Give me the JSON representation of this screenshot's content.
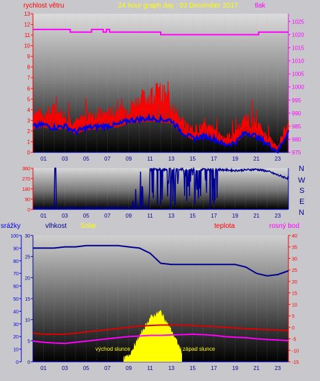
{
  "header": {
    "left_label": "rychlost větru",
    "center_title": "24 hour graph day : 03 December 2017",
    "right_label": "tlak"
  },
  "direction_labels": [
    "N",
    "W",
    "S",
    "E",
    "N"
  ],
  "bottom_labels": {
    "rain": "srážky",
    "humidity": "vlhkost",
    "solar": "Solar",
    "temperature": "teplota",
    "dew": "rosný bod",
    "sunrise": "východ slunce",
    "sunset": "západ slunce"
  },
  "colors": {
    "wind_gust": "#ff0000",
    "wind_avg": "#0000dd",
    "pressure": "#ff00ff",
    "direction": "#000090",
    "humidity": "#000090",
    "temperature": "#dd0000",
    "dew": "#ff00ff",
    "solar": "#ffff00",
    "axis_left": "#ff0000",
    "axis_right": "#ff00ff",
    "axis_bottom": "#0000dd"
  },
  "chart_data": [
    {
      "type": "line",
      "x_ticks": [
        "01",
        "03",
        "05",
        "07",
        "09",
        "11",
        "13",
        "15",
        "17",
        "19",
        "21",
        "23"
      ],
      "y_left": {
        "range": [
          0,
          13
        ],
        "ticks": [
          "0",
          "1",
          "2",
          "3",
          "4",
          "5",
          "6",
          "7",
          "8",
          "9",
          "10",
          "11",
          "12",
          "13"
        ]
      },
      "y_right": {
        "range": [
          975,
          1028
        ],
        "ticks": [
          "975",
          "980",
          "985",
          "990",
          "995",
          "1000",
          "1005",
          "1010",
          "1015",
          "1020",
          "1025"
        ]
      },
      "x": [
        0,
        1,
        2,
        3,
        4,
        5,
        6,
        7,
        8,
        9,
        10,
        11,
        12,
        13,
        14,
        15,
        16,
        17,
        18,
        19,
        20,
        21,
        22,
        23,
        24
      ],
      "series": [
        {
          "role": "gust",
          "values": [
            3.8,
            3.6,
            3.9,
            3.5,
            2.8,
            3.4,
            3.6,
            3.7,
            3.8,
            4.2,
            4.9,
            5.3,
            5.6,
            4.6,
            2.8,
            2.2,
            2.4,
            2.2,
            1.4,
            1.8,
            3.1,
            2.7,
            1.5,
            0.4,
            3.0
          ]
        },
        {
          "role": "avg",
          "values": [
            2.4,
            2.6,
            2.3,
            2.5,
            1.9,
            2.3,
            2.4,
            2.5,
            2.6,
            3.0,
            3.1,
            3.2,
            3.1,
            3.0,
            1.9,
            1.3,
            1.5,
            1.3,
            0.7,
            0.9,
            1.9,
            1.5,
            0.8,
            0.1,
            2.0
          ]
        },
        {
          "role": "pressure",
          "values": [
            1022,
            1022,
            1022,
            1021,
            1021,
            1021,
            1021,
            1021,
            1021,
            1021,
            1021,
            1021,
            1020,
            1020,
            1020,
            1020,
            1020,
            1020,
            1020,
            1020,
            1020,
            1020,
            1021,
            1021,
            1021
          ]
        }
      ]
    },
    {
      "type": "line",
      "x_ticks": [
        "01",
        "03",
        "05",
        "07",
        "09",
        "11",
        "13",
        "15",
        "17",
        "19",
        "21",
        "23"
      ],
      "y": {
        "range": [
          0,
          360
        ],
        "ticks": [
          "0",
          "90",
          "180",
          "270",
          "360"
        ]
      },
      "x": [
        0,
        1,
        2,
        3,
        4,
        5,
        6,
        7,
        8,
        9,
        10,
        11,
        12,
        13,
        14,
        15,
        16,
        17,
        18,
        19,
        20,
        21,
        22,
        23,
        24
      ],
      "series": [
        {
          "role": "direction",
          "values": [
            15,
            15,
            15,
            15,
            15,
            15,
            15,
            15,
            15,
            15,
            15,
            360,
            360,
            360,
            355,
            355,
            350,
            350,
            345,
            340,
            345,
            350,
            335,
            300,
            270
          ]
        }
      ]
    },
    {
      "type": "line",
      "x_ticks": [
        "01",
        "03",
        "05",
        "07",
        "09",
        "11",
        "13",
        "15",
        "17",
        "19",
        "21",
        "23"
      ],
      "y_left_rain": {
        "range": [
          0,
          100
        ],
        "ticks": [
          "0",
          "10",
          "20",
          "30",
          "40",
          "50",
          "60",
          "70",
          "80",
          "90",
          "100"
        ]
      },
      "y_left_humidity": {
        "range": [
          0,
          30
        ],
        "ticks": [
          "0",
          "5",
          "10",
          "15",
          "20",
          "25",
          "30"
        ]
      },
      "y_right": {
        "range": [
          -15,
          40
        ],
        "ticks": [
          "-15",
          "-10",
          "-5",
          "0",
          "5",
          "10",
          "15",
          "20",
          "25",
          "30",
          "35",
          "40"
        ]
      },
      "x": [
        0,
        1,
        2,
        3,
        4,
        5,
        6,
        7,
        8,
        9,
        10,
        11,
        12,
        13,
        14,
        15,
        16,
        17,
        18,
        19,
        20,
        21,
        22,
        23,
        24
      ],
      "series": [
        {
          "role": "humidity",
          "values": [
            90,
            90,
            90,
            91,
            91,
            92,
            92,
            92,
            92,
            91,
            90,
            86,
            78,
            77,
            77,
            77,
            77,
            77,
            77,
            77,
            75,
            70,
            68,
            69,
            72
          ]
        },
        {
          "role": "temperature",
          "values": [
            -2.5,
            -3.0,
            -3.0,
            -3.0,
            -2.5,
            -2.0,
            -1.5,
            -1.0,
            -0.5,
            0.0,
            0.5,
            0.8,
            1.0,
            1.0,
            1.0,
            0.8,
            0.5,
            0.3,
            0.0,
            -0.3,
            -0.6,
            -0.8,
            -1.0,
            -1.2,
            -1.5
          ]
        },
        {
          "role": "dew",
          "values": [
            -6.0,
            -6.5,
            -6.8,
            -7.0,
            -6.5,
            -6.0,
            -5.5,
            -5.0,
            -4.5,
            -4.0,
            -3.8,
            -3.5,
            -3.5,
            -3.3,
            -3.2,
            -3.0,
            -3.2,
            -3.5,
            -4.0,
            -4.3,
            -4.5,
            -5.0,
            -5.3,
            -5.5,
            -5.8
          ]
        },
        {
          "role": "solar",
          "values": [
            0,
            0,
            0,
            0,
            0,
            0,
            0,
            0,
            0,
            5,
            20,
            35,
            40,
            25,
            8,
            0,
            0,
            0,
            0,
            0,
            0,
            0,
            0,
            0,
            0
          ]
        }
      ]
    }
  ]
}
